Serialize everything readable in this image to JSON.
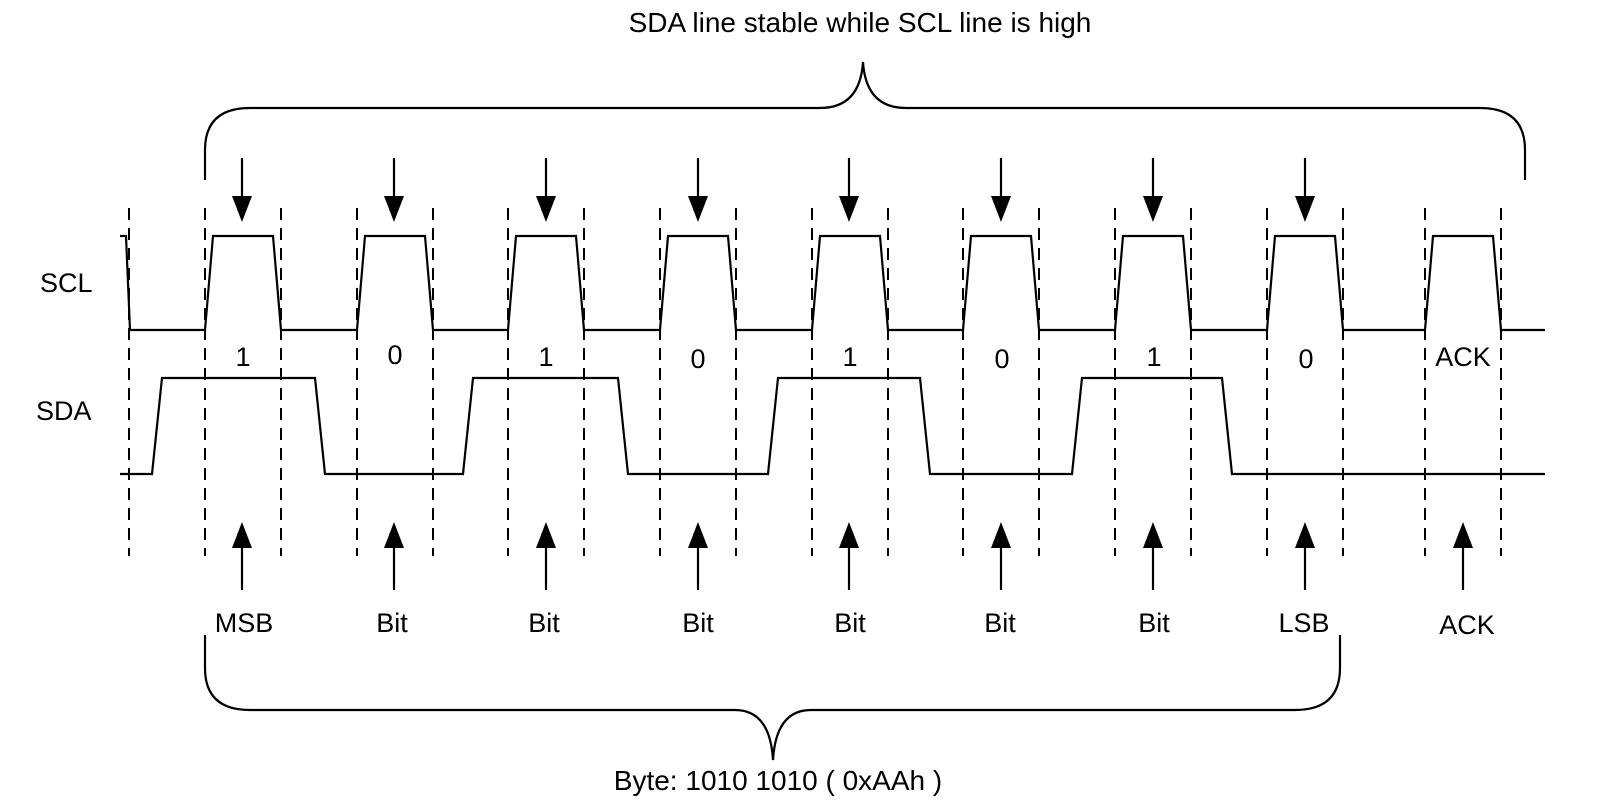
{
  "diagram": {
    "top_caption": "SDA line stable while SCL line is high",
    "bottom_caption": "Byte: 1010 1010 ( 0xAAh )",
    "signals": {
      "scl_label": "SCL",
      "sda_label": "SDA"
    },
    "bits": [
      {
        "value": "1",
        "name": "MSB"
      },
      {
        "value": "0",
        "name": "Bit"
      },
      {
        "value": "1",
        "name": "Bit"
      },
      {
        "value": "0",
        "name": "Bit"
      },
      {
        "value": "1",
        "name": "Bit"
      },
      {
        "value": "0",
        "name": "Bit"
      },
      {
        "value": "1",
        "name": "Bit"
      },
      {
        "value": "0",
        "name": "LSB"
      },
      {
        "value": "ACK",
        "name": "ACK"
      }
    ]
  }
}
